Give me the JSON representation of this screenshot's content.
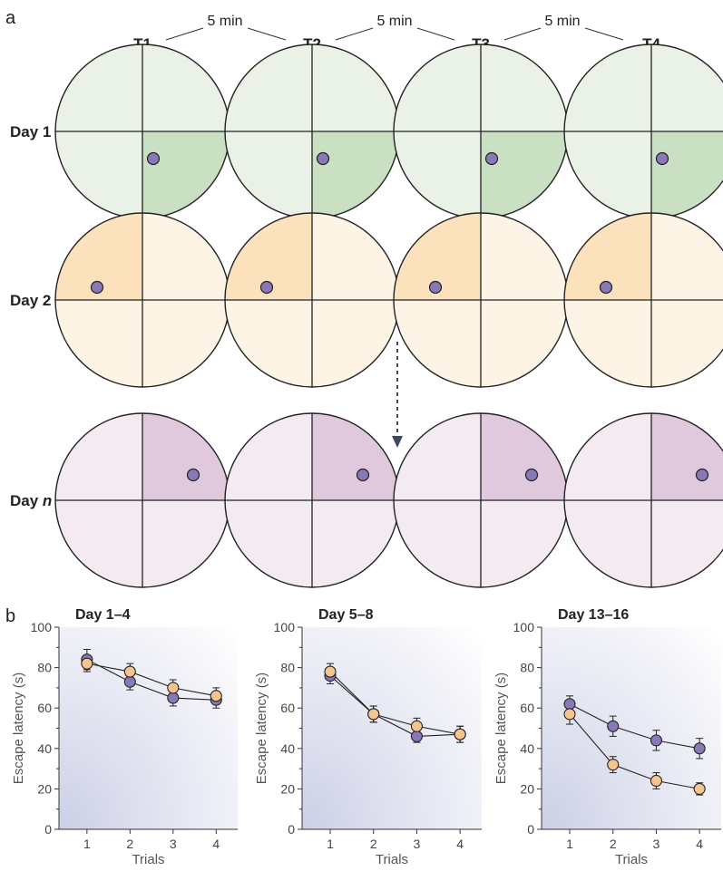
{
  "panel_a": {
    "label": "a",
    "trials": [
      "T1",
      "T2",
      "T3",
      "T4"
    ],
    "intervals": [
      "5 min",
      "5 min",
      "5 min"
    ],
    "days": [
      {
        "label_main": "Day 1",
        "label_italic": "",
        "target_quadrant": "bottom-right",
        "platform": "lower-right",
        "colors": {
          "fill": "#eaf1e6",
          "target": "#c9e0c2"
        }
      },
      {
        "label_main": "Day 2",
        "label_italic": "",
        "target_quadrant": "top-left",
        "platform": "left",
        "colors": {
          "fill": "#fdf4e6",
          "target": "#fbe1bc"
        }
      },
      {
        "label_main": "Day ",
        "label_italic": "n",
        "target_quadrant": "top-right",
        "platform": "upper-right",
        "colors": {
          "fill": "#f3eaf2",
          "target": "#e0c8dd"
        }
      }
    ],
    "platform_color": "#8878b6"
  },
  "panel_b": {
    "label": "b"
  },
  "chart_data": [
    {
      "type": "line",
      "title": "Day 1–4",
      "xlabel": "Trials",
      "ylabel": "Escape latency (s)",
      "x": [
        1,
        2,
        3,
        4
      ],
      "ylim": [
        0,
        100
      ],
      "yticks": [
        0,
        20,
        40,
        60,
        80,
        100
      ],
      "series": [
        {
          "values": [
            84,
            73,
            65,
            64
          ],
          "errors": [
            5,
            4,
            4,
            4
          ],
          "color": "#8878b6"
        },
        {
          "values": [
            82,
            78,
            70,
            66
          ],
          "errors": [
            4,
            4,
            4,
            4
          ],
          "color": "#f6c48e"
        }
      ]
    },
    {
      "type": "line",
      "title": "Day 5–8",
      "xlabel": "Trials",
      "ylabel": "Escape latency (s)",
      "x": [
        1,
        2,
        3,
        4
      ],
      "ylim": [
        0,
        100
      ],
      "yticks": [
        0,
        20,
        40,
        60,
        80,
        100
      ],
      "series": [
        {
          "values": [
            76,
            57,
            46,
            47
          ],
          "errors": [
            4,
            4,
            3,
            4
          ],
          "color": "#8878b6"
        },
        {
          "values": [
            78,
            57,
            51,
            47
          ],
          "errors": [
            4,
            4,
            4,
            4
          ],
          "color": "#f6c48e"
        }
      ]
    },
    {
      "type": "line",
      "title": "Day 13–16",
      "xlabel": "Trials",
      "ylabel": "Escape latency (s)",
      "x": [
        1,
        2,
        3,
        4
      ],
      "ylim": [
        0,
        100
      ],
      "yticks": [
        0,
        20,
        40,
        60,
        80,
        100
      ],
      "series": [
        {
          "values": [
            62,
            51,
            44,
            40
          ],
          "errors": [
            4,
            5,
            5,
            5
          ],
          "color": "#8878b6"
        },
        {
          "values": [
            57,
            32,
            24,
            20
          ],
          "errors": [
            5,
            4,
            4,
            3
          ],
          "color": "#f6c48e"
        }
      ]
    }
  ]
}
